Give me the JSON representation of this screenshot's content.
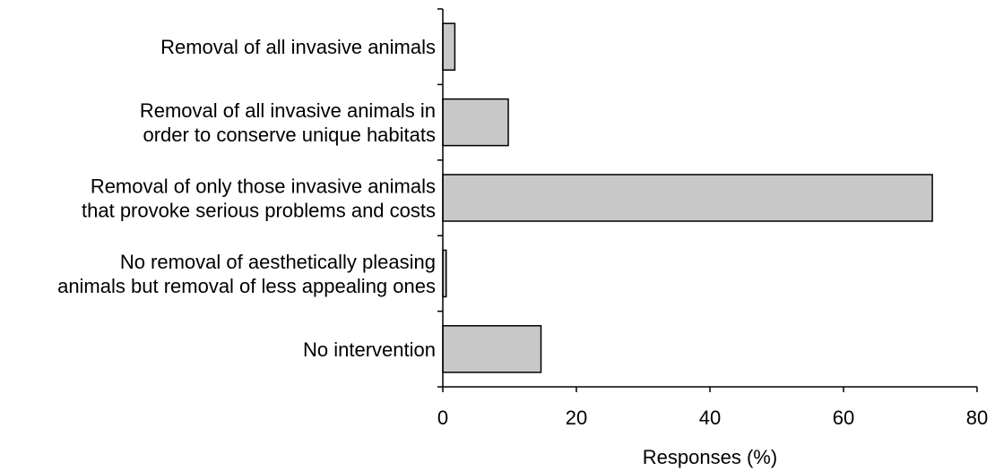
{
  "chart_data": {
    "type": "bar",
    "orientation": "horizontal",
    "categories": [
      [
        "Removal of all invasive animals"
      ],
      [
        "Removal of all invasive animals in",
        "order to conserve unique habitats"
      ],
      [
        "Removal of only those invasive animals",
        "that provoke serious problems and costs"
      ],
      [
        "No removal of aesthetically pleasing",
        "animals but removal of less appealing ones"
      ],
      [
        "No intervention"
      ]
    ],
    "values": [
      1.8,
      9.8,
      73.3,
      0.5,
      14.7
    ],
    "xlabel": "Responses (%)",
    "xlim": [
      0,
      80
    ],
    "xticks": [
      0,
      20,
      40,
      60,
      80
    ],
    "grid": false,
    "legend": "none",
    "bar_fill": "#c8c8c8",
    "bar_stroke": "#000000",
    "axis_color": "#000000"
  }
}
